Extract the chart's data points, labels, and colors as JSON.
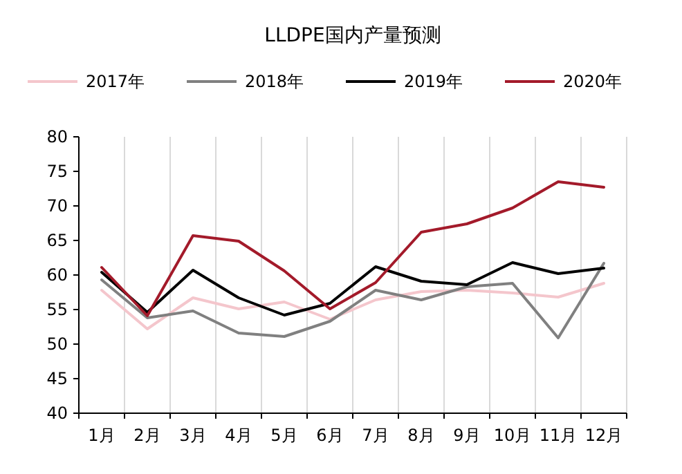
{
  "chart_data": {
    "type": "line",
    "title": "LLDPE国内产量预测",
    "categories": [
      "1月",
      "2月",
      "3月",
      "4月",
      "5月",
      "6月",
      "7月",
      "8月",
      "9月",
      "10月",
      "11月",
      "12月"
    ],
    "series": [
      {
        "name": "2017年",
        "color": "#f4c6cc",
        "values": [
          57.8,
          52.2,
          56.7,
          55.1,
          56.1,
          53.6,
          56.4,
          57.6,
          57.8,
          57.4,
          56.8,
          58.8
        ]
      },
      {
        "name": "2018年",
        "color": "#808080",
        "values": [
          59.3,
          53.8,
          54.8,
          51.6,
          51.1,
          53.3,
          57.8,
          56.4,
          58.3,
          58.8,
          50.9,
          61.7
        ]
      },
      {
        "name": "2019年",
        "color": "#000000",
        "values": [
          60.4,
          54.6,
          60.7,
          56.7,
          54.2,
          55.9,
          61.2,
          59.1,
          58.6,
          61.8,
          60.2,
          61.0
        ]
      },
      {
        "name": "2020年",
        "color": "#a31a2a",
        "values": [
          61.1,
          54.1,
          65.7,
          64.9,
          60.6,
          55.1,
          58.9,
          66.2,
          67.4,
          69.7,
          73.5,
          72.7
        ]
      }
    ],
    "ylim": [
      40,
      80
    ],
    "yticks": [
      40,
      45,
      50,
      55,
      60,
      65,
      70,
      75,
      80
    ],
    "grid": "x",
    "legend": "top",
    "marker": "none",
    "line_style": "solid"
  }
}
